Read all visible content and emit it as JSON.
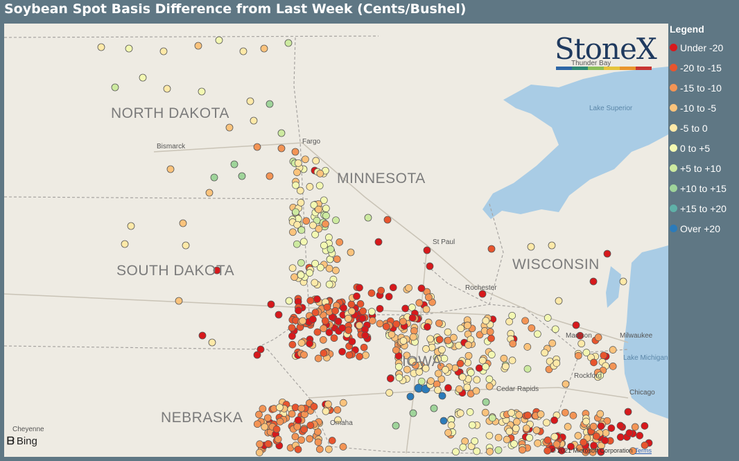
{
  "title": "Soybean Spot Basis Difference from Last Week (Cents/Bushel)",
  "logo": {
    "text": "StoneX",
    "bar_colors": [
      "#2e66a6",
      "#2f8a74",
      "#8dbf58",
      "#e6c43c",
      "#e9952d",
      "#c83532"
    ]
  },
  "legend": {
    "title": "Legend",
    "items": [
      {
        "label": "Under -20",
        "color": "#d7191c"
      },
      {
        "label": "-20 to -15",
        "color": "#e8552e"
      },
      {
        "label": "-15 to -10",
        "color": "#f39455"
      },
      {
        "label": "-10 to -5",
        "color": "#fbc37c"
      },
      {
        "label": "-5 to 0",
        "color": "#fee9a8"
      },
      {
        "label": "0 to +5",
        "color": "#f3f8b2"
      },
      {
        "label": "+5 to +10",
        "color": "#cdeaa0"
      },
      {
        "label": "+10 to +15",
        "color": "#9fd49a"
      },
      {
        "label": "+15 to +20",
        "color": "#5fb1a8"
      },
      {
        "label": "Over +20",
        "color": "#2b7bba"
      }
    ]
  },
  "map": {
    "states": [
      "NORTH DAKOTA",
      "MINNESOTA",
      "SOUTH DAKOTA",
      "WISCONSIN",
      "IOWA",
      "NEBRASKA"
    ],
    "cities": [
      "Bismarck",
      "Fargo",
      "St Paul",
      "Rochester",
      "Madison",
      "Milwaukee",
      "Rockford",
      "Chicago",
      "Cedar Rapids",
      "Omaha",
      "Cheyenne",
      "Thunder Bay"
    ],
    "water": [
      "Lake Superior",
      "Lake Michigan"
    ]
  },
  "attribution": {
    "provider": "Bing",
    "copyright": "© 2021 Microsoft Corporation",
    "terms": "Terms"
  }
}
